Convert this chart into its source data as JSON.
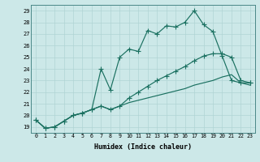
{
  "xlabel": "Humidex (Indice chaleur)",
  "bg_color": "#cce8e8",
  "grid_color": "#b0d4d4",
  "line_color": "#1a7060",
  "xlim": [
    -0.5,
    23.5
  ],
  "ylim": [
    18.5,
    29.5
  ],
  "xticks": [
    0,
    1,
    2,
    3,
    4,
    5,
    6,
    7,
    8,
    9,
    10,
    11,
    12,
    13,
    14,
    15,
    16,
    17,
    18,
    19,
    20,
    21,
    22,
    23
  ],
  "yticks": [
    19,
    20,
    21,
    22,
    23,
    24,
    25,
    26,
    27,
    28,
    29
  ],
  "line1_x": [
    0,
    1,
    2,
    3,
    4,
    5,
    6,
    7,
    8,
    9,
    10,
    11,
    12,
    13,
    14,
    15,
    16,
    17,
    18,
    19,
    20,
    21,
    22,
    23
  ],
  "line1_y": [
    19.6,
    18.9,
    19.0,
    19.5,
    20.0,
    20.2,
    20.5,
    24.0,
    22.2,
    25.0,
    25.7,
    25.5,
    27.3,
    27.0,
    27.7,
    27.6,
    28.0,
    29.0,
    27.8,
    27.2,
    25.1,
    23.0,
    22.8,
    22.8
  ],
  "line2_x": [
    0,
    1,
    2,
    3,
    4,
    5,
    6,
    7,
    8,
    9,
    10,
    11,
    12,
    13,
    14,
    15,
    16,
    17,
    18,
    19,
    20,
    21,
    22,
    23
  ],
  "line2_y": [
    19.6,
    18.9,
    19.0,
    19.5,
    20.0,
    20.2,
    20.5,
    20.8,
    20.5,
    20.8,
    21.5,
    22.0,
    22.5,
    23.0,
    23.4,
    23.8,
    24.2,
    24.7,
    25.1,
    25.3,
    25.3,
    25.0,
    23.0,
    22.8
  ],
  "line3_x": [
    0,
    1,
    2,
    3,
    4,
    5,
    6,
    7,
    8,
    9,
    10,
    11,
    12,
    13,
    14,
    15,
    16,
    17,
    18,
    19,
    20,
    21,
    22,
    23
  ],
  "line3_y": [
    19.6,
    18.9,
    19.0,
    19.5,
    20.0,
    20.2,
    20.5,
    20.8,
    20.5,
    20.8,
    21.1,
    21.3,
    21.5,
    21.7,
    21.9,
    22.1,
    22.3,
    22.6,
    22.8,
    23.0,
    23.3,
    23.5,
    22.8,
    22.6
  ],
  "figsize": [
    3.2,
    2.0
  ],
  "dpi": 100
}
